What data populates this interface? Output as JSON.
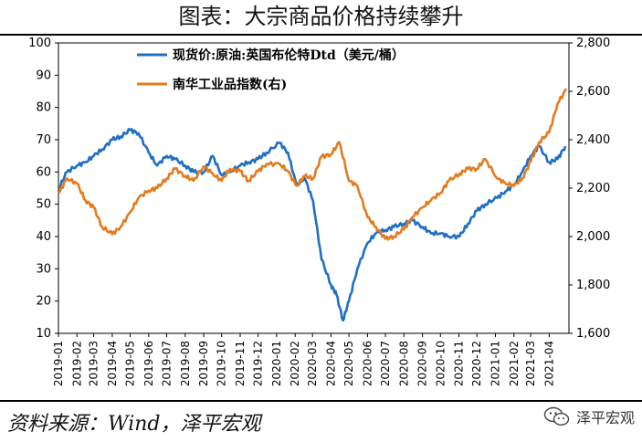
{
  "header": {
    "title": "图表：大宗商品价格持续攀升"
  },
  "footer": {
    "source": "资料来源：Wind，泽平宏观",
    "watermark": "泽平宏观",
    "watermark_icon": "wechat-icon"
  },
  "chart_data": {
    "type": "line",
    "x_categories": [
      "2019-01",
      "2019-02",
      "2019-03",
      "2019-04",
      "2019-05",
      "2019-06",
      "2019-07",
      "2019-08",
      "2019-09",
      "2019-10",
      "2019-11",
      "2019-12",
      "2020-01",
      "2020-02",
      "2020-03",
      "2020-04",
      "2020-05",
      "2020-06",
      "2020-07",
      "2020-08",
      "2020-09",
      "2020-10",
      "2020-11",
      "2020-12",
      "2021-01",
      "2021-02",
      "2021-03",
      "2021-04"
    ],
    "y_left": {
      "min": 10,
      "max": 100,
      "ticks": [
        10,
        20,
        30,
        40,
        50,
        60,
        70,
        80,
        90,
        100
      ],
      "tick_labels": [
        "10",
        "20",
        "30",
        "40",
        "50",
        "60",
        "70",
        "80",
        "90",
        "100"
      ]
    },
    "y_right": {
      "min": 1600,
      "max": 2800,
      "ticks": [
        1600,
        1800,
        2000,
        2200,
        2400,
        2600,
        2800
      ],
      "tick_labels": [
        "1,600",
        "1,800",
        "2,000",
        "2,200",
        "2,400",
        "2,600",
        "2,800"
      ]
    },
    "legend_position": "top-center",
    "grid": false,
    "series": [
      {
        "name": "现货价:原油:英国布伦特Dtd（美元/桶）",
        "axis": "left",
        "color": "#1F6FC5",
        "x": [
          "2019-01-02",
          "2019-01-15",
          "2019-02-01",
          "2019-02-15",
          "2019-03-01",
          "2019-03-15",
          "2019-04-01",
          "2019-04-15",
          "2019-05-01",
          "2019-05-15",
          "2019-06-01",
          "2019-06-15",
          "2019-07-01",
          "2019-07-15",
          "2019-08-01",
          "2019-08-15",
          "2019-09-01",
          "2019-09-16",
          "2019-10-01",
          "2019-10-15",
          "2019-11-01",
          "2019-11-15",
          "2019-12-01",
          "2019-12-15",
          "2020-01-06",
          "2020-01-20",
          "2020-02-03",
          "2020-02-17",
          "2020-03-02",
          "2020-03-16",
          "2020-04-01",
          "2020-04-10",
          "2020-04-21",
          "2020-05-01",
          "2020-05-15",
          "2020-06-01",
          "2020-06-15",
          "2020-07-01",
          "2020-07-15",
          "2020-08-01",
          "2020-08-15",
          "2020-09-01",
          "2020-09-15",
          "2020-10-01",
          "2020-10-15",
          "2020-11-02",
          "2020-11-16",
          "2020-12-01",
          "2020-12-15",
          "2021-01-04",
          "2021-01-18",
          "2021-02-01",
          "2021-02-15",
          "2021-03-01",
          "2021-03-15",
          "2021-04-01",
          "2021-04-15",
          "2021-04-28"
        ],
        "values": [
          55,
          60,
          62,
          63,
          65,
          67,
          70,
          71,
          73,
          72,
          66,
          62,
          65,
          64,
          62,
          60,
          60,
          65,
          59,
          60,
          62,
          63,
          64,
          66,
          69,
          66,
          56,
          58,
          51,
          33,
          25,
          22,
          14,
          20,
          30,
          38,
          41,
          42,
          43,
          44,
          45,
          43,
          41,
          41,
          40,
          40,
          44,
          48,
          50,
          52,
          54,
          56,
          60,
          65,
          68,
          63,
          64,
          68
        ]
      },
      {
        "name": "南华工业品指数(右)",
        "axis": "right",
        "color": "#E57A1E",
        "x": [
          "2019-01-02",
          "2019-01-15",
          "2019-02-01",
          "2019-02-15",
          "2019-03-01",
          "2019-03-15",
          "2019-04-01",
          "2019-04-15",
          "2019-05-01",
          "2019-05-15",
          "2019-06-01",
          "2019-06-15",
          "2019-07-01",
          "2019-07-15",
          "2019-08-01",
          "2019-08-15",
          "2019-09-01",
          "2019-09-16",
          "2019-10-01",
          "2019-10-15",
          "2019-11-01",
          "2019-11-15",
          "2019-12-01",
          "2019-12-15",
          "2020-01-06",
          "2020-01-20",
          "2020-02-03",
          "2020-02-17",
          "2020-03-02",
          "2020-03-16",
          "2020-04-01",
          "2020-04-15",
          "2020-05-01",
          "2020-05-15",
          "2020-06-01",
          "2020-06-15",
          "2020-07-01",
          "2020-07-15",
          "2020-08-01",
          "2020-08-15",
          "2020-09-01",
          "2020-09-15",
          "2020-10-01",
          "2020-10-15",
          "2020-11-02",
          "2020-11-16",
          "2020-12-01",
          "2020-12-15",
          "2021-01-04",
          "2021-01-18",
          "2021-02-01",
          "2021-02-15",
          "2021-03-01",
          "2021-03-15",
          "2021-04-01",
          "2021-04-15",
          "2021-04-30"
        ],
        "values": [
          2180,
          2240,
          2220,
          2150,
          2120,
          2040,
          2010,
          2040,
          2100,
          2160,
          2190,
          2200,
          2240,
          2280,
          2250,
          2230,
          2290,
          2260,
          2230,
          2280,
          2270,
          2230,
          2270,
          2300,
          2300,
          2270,
          2210,
          2250,
          2240,
          2330,
          2340,
          2390,
          2230,
          2210,
          2080,
          2040,
          1990,
          2000,
          2030,
          2080,
          2120,
          2150,
          2180,
          2230,
          2260,
          2280,
          2280,
          2320,
          2240,
          2220,
          2210,
          2240,
          2310,
          2390,
          2430,
          2550,
          2610
        ]
      }
    ]
  }
}
